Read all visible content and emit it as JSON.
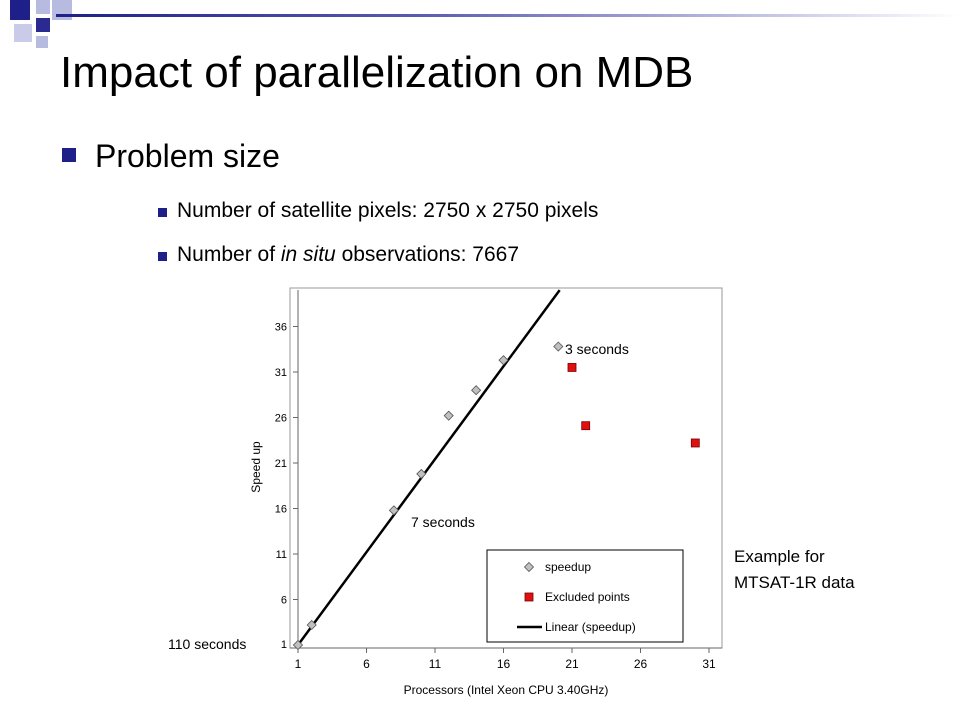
{
  "slide": {
    "title": "Impact of parallelization on MDB",
    "bullet_main": "Problem size",
    "sub1": "Number of satellite pixels: 2750 x 2750 pixels",
    "sub2_pre": "Number of ",
    "sub2_em": "in situ",
    "sub2_post": " observations: 7667",
    "example_line1": "Example for",
    "example_line2": "MTSAT-1R data"
  },
  "chart_data": {
    "type": "scatter",
    "xlabel": "Processors (Intel Xeon CPU 3.40GHz)",
    "ylabel": "Speed up",
    "xlim": [
      1,
      33
    ],
    "ylim": [
      1,
      40
    ],
    "x_ticks": [
      1,
      6,
      11,
      16,
      21,
      26,
      31
    ],
    "y_ticks": [
      1,
      6,
      11,
      16,
      21,
      26,
      31,
      36
    ],
    "grid": false,
    "legend_position": "bottom-right",
    "series": [
      {
        "name": "speedup",
        "marker": "diamond",
        "color": "#c0c0c0",
        "points": [
          [
            1,
            1
          ],
          [
            2,
            3.2
          ],
          [
            8,
            15.8
          ],
          [
            10,
            19.8
          ],
          [
            12,
            26.2
          ],
          [
            14,
            29
          ],
          [
            16,
            32.3
          ],
          [
            20,
            33.8
          ]
        ]
      },
      {
        "name": "Excluded points",
        "marker": "square",
        "color": "#e01010",
        "points": [
          [
            21,
            31.5
          ],
          [
            22,
            25.1
          ],
          [
            30,
            23.2
          ]
        ]
      },
      {
        "name": "Linear (speedup)",
        "marker": "line",
        "color": "#000000"
      }
    ],
    "annotations": [
      {
        "text": "110 seconds",
        "x": 1,
        "y": 1,
        "anchor": "left"
      },
      {
        "text": "7 seconds",
        "x": 9,
        "y": 15.8,
        "anchor": "below-right"
      },
      {
        "text": "3 seconds",
        "x": 20,
        "y": 33.8,
        "anchor": "right"
      }
    ]
  }
}
